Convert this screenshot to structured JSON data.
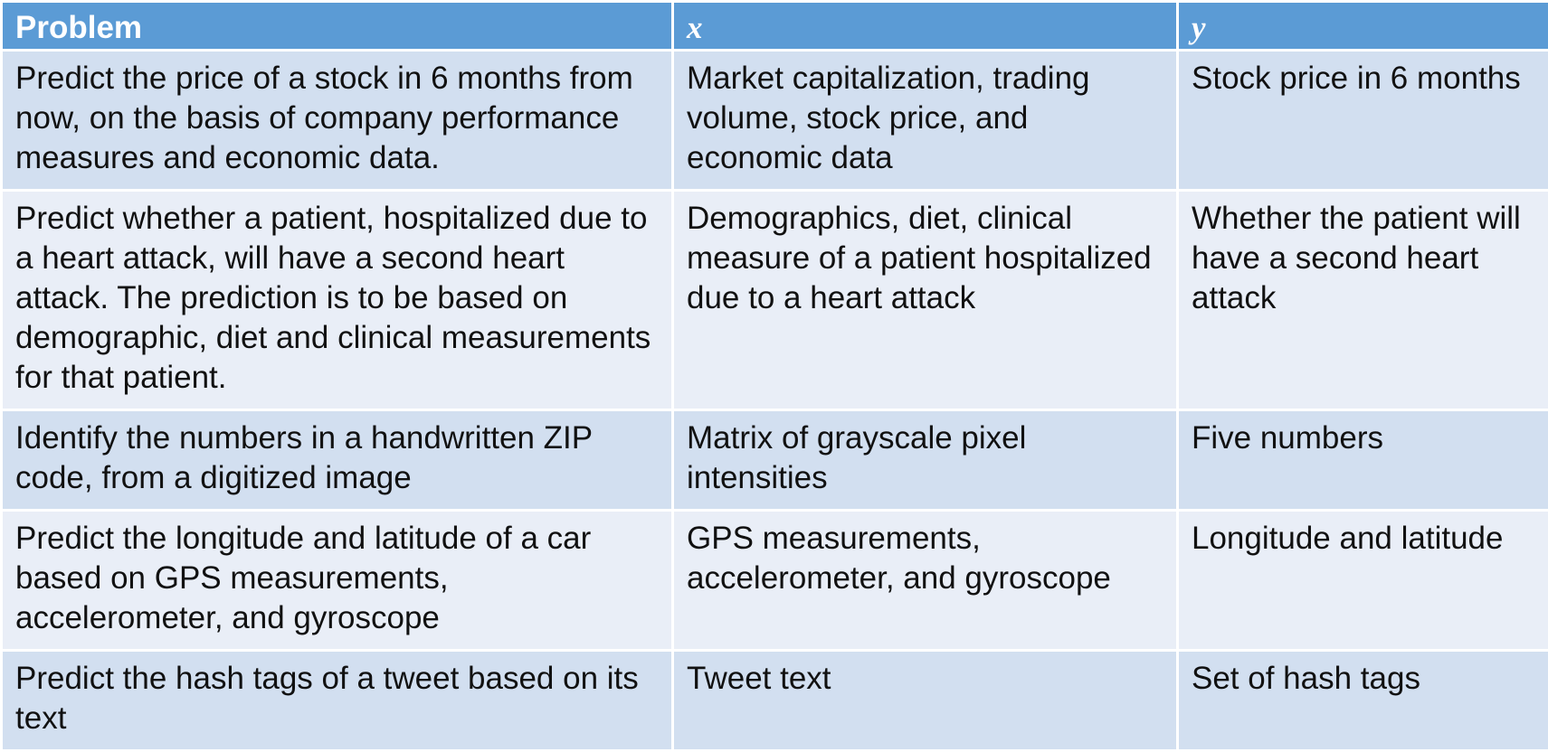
{
  "header": {
    "problem": "Problem",
    "x": "x",
    "y": "y"
  },
  "rows": [
    {
      "problem": "Predict the price of a stock in 6 months from now, on the basis of company performance measures and economic data.",
      "x": "Market capitalization, trading volume, stock price, and economic data",
      "y": "Stock price in 6 months"
    },
    {
      "problem": "Predict whether a patient, hospitalized due to a heart attack, will have a second heart attack. The prediction is to be based on demographic, diet and clinical measurements for that patient.",
      "x": "Demographics, diet, clinical measure of a patient hospitalized due to a heart attack",
      "y": "Whether the patient will have a second heart attack"
    },
    {
      "problem": "Identify the numbers in a handwritten ZIP code, from a digitized image",
      "x": "Matrix of grayscale pixel intensities",
      "y": "Five numbers"
    },
    {
      "problem": "Predict the longitude and latitude of a car based on GPS measurements, accelerometer, and gyroscope",
      "x": "GPS measurements, accelerometer, and gyroscope",
      "y": "Longitude and latitude"
    },
    {
      "problem": "Predict the hash tags of a tweet based on its text",
      "x": "Tweet text",
      "y": "Set of hash tags"
    }
  ],
  "colors": {
    "header_bg": "#5b9bd5",
    "row_odd_bg": "#d2dff0",
    "row_even_bg": "#e9eef7",
    "border": "#ffffff"
  }
}
